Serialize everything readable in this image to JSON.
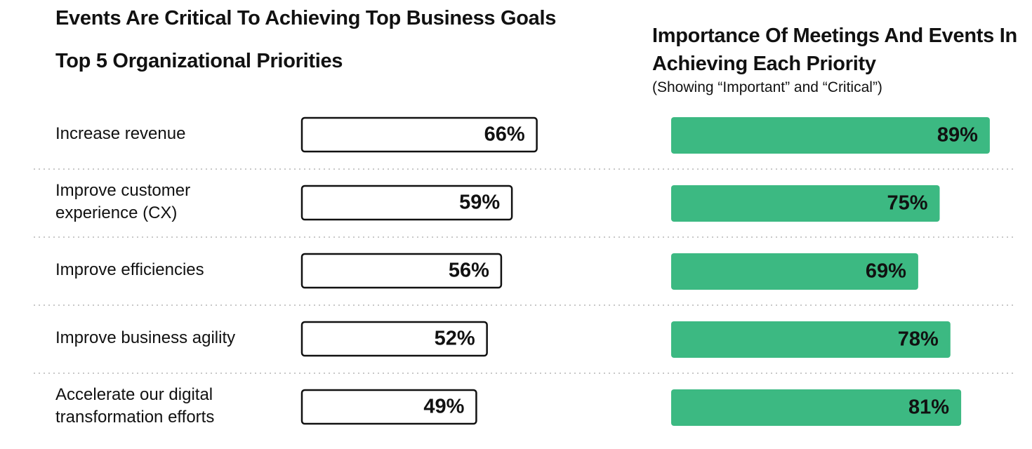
{
  "title": "Events Are Critical To Achieving Top Business Goals",
  "left_panel": {
    "title": "Top 5 Organizational Priorities"
  },
  "right_panel": {
    "title": "Importance Of Meetings And Events In Achieving Each Priority",
    "subtitle": "(Showing “Important” and “Critical”)"
  },
  "colors": {
    "accent": "#3cb982",
    "outline": "#111111",
    "divider": "#c8c8c8"
  },
  "chart_data": {
    "type": "bar",
    "orientation": "horizontal",
    "categories": [
      "Increase revenue",
      "Improve customer experience (CX)",
      "Improve efficiencies",
      "Improve business agility",
      "Accelerate our digital transformation efforts"
    ],
    "category_lines": [
      [
        "Increase revenue"
      ],
      [
        "Improve customer",
        "experience (CX)"
      ],
      [
        "Improve efficiencies"
      ],
      [
        "Improve business agility"
      ],
      [
        "Accelerate our digital",
        "transformation efforts"
      ]
    ],
    "series": [
      {
        "name": "Top 5 Organizational Priorities",
        "values": [
          66,
          59,
          56,
          52,
          49
        ],
        "labels": [
          "66%",
          "59%",
          "56%",
          "52%",
          "49%"
        ],
        "style": "outline"
      },
      {
        "name": "Importance Of Meetings And Events In Achieving Each Priority",
        "values": [
          89,
          75,
          69,
          78,
          81
        ],
        "labels": [
          "89%",
          "75%",
          "69%",
          "78%",
          "81%"
        ],
        "style": "filled"
      }
    ],
    "unit": "%",
    "xlim": [
      0,
      100
    ],
    "grid": false,
    "legend": "none"
  }
}
